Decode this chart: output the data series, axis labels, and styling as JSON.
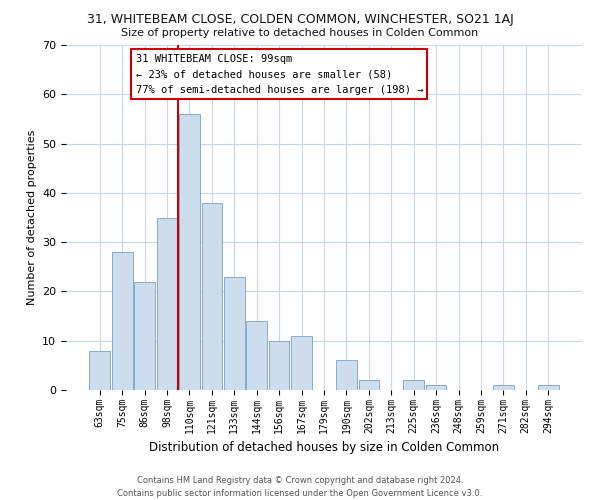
{
  "title": "31, WHITEBEAM CLOSE, COLDEN COMMON, WINCHESTER, SO21 1AJ",
  "subtitle": "Size of property relative to detached houses in Colden Common",
  "xlabel": "Distribution of detached houses by size in Colden Common",
  "ylabel": "Number of detached properties",
  "bar_labels": [
    "63sqm",
    "75sqm",
    "86sqm",
    "98sqm",
    "110sqm",
    "121sqm",
    "133sqm",
    "144sqm",
    "156sqm",
    "167sqm",
    "179sqm",
    "190sqm",
    "202sqm",
    "213sqm",
    "225sqm",
    "236sqm",
    "248sqm",
    "259sqm",
    "271sqm",
    "282sqm",
    "294sqm"
  ],
  "bar_values": [
    8,
    28,
    22,
    35,
    56,
    38,
    23,
    14,
    10,
    11,
    0,
    6,
    2,
    0,
    2,
    1,
    0,
    0,
    1,
    0,
    1
  ],
  "bar_color": "#ccdded",
  "bar_edge_color": "#88aacc",
  "vline_x_index": 3.5,
  "vline_color": "#cc0000",
  "ylim": [
    0,
    70
  ],
  "yticks": [
    0,
    10,
    20,
    30,
    40,
    50,
    60,
    70
  ],
  "annotation_line1": "31 WHITEBEAM CLOSE: 99sqm",
  "annotation_line2": "← 23% of detached houses are smaller (58)",
  "annotation_line3": "77% of semi-detached houses are larger (198) →",
  "annotation_box_color": "#ffffff",
  "annotation_box_edge": "#cc0000",
  "footer_line1": "Contains HM Land Registry data © Crown copyright and database right 2024.",
  "footer_line2": "Contains public sector information licensed under the Open Government Licence v3.0.",
  "bg_color": "#ffffff",
  "grid_color": "#c8d8e8",
  "spine_color": "#8899aa"
}
